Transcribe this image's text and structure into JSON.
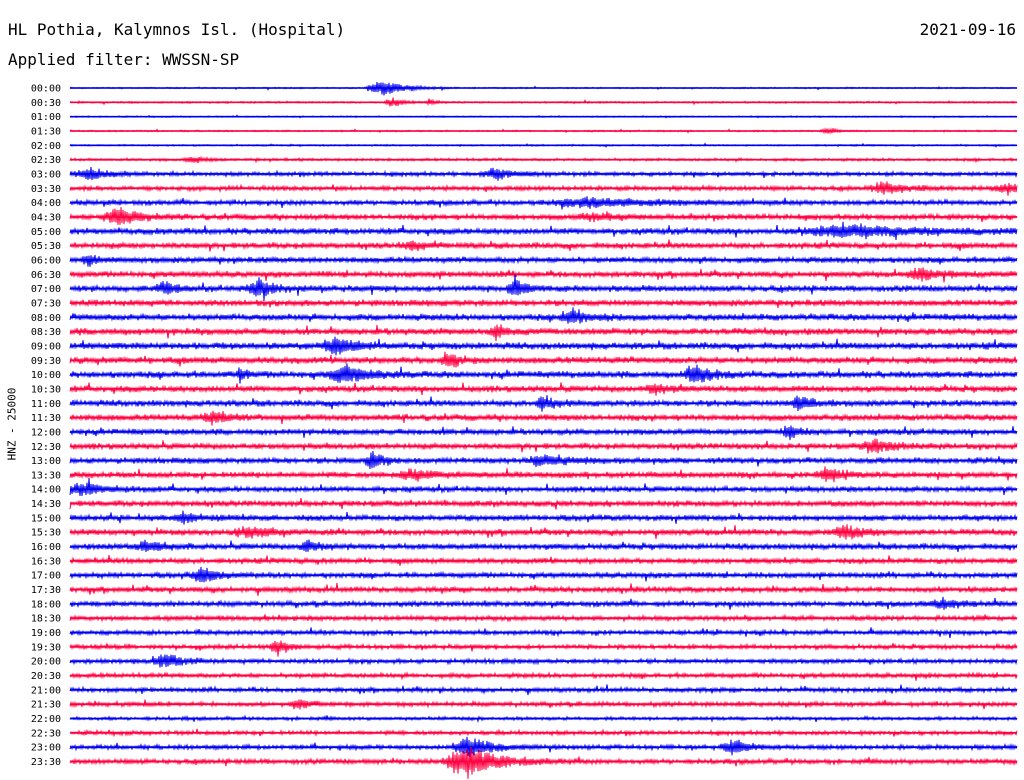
{
  "header": {
    "station": "HL Pothia, Kalymnos Isl. (Hospital)",
    "date": "2021-09-16",
    "filter": "Applied filter: WWSSN-SP"
  },
  "chart_data": {
    "type": "line",
    "ylabel": "HNZ - 25000",
    "colors": [
      "#0000ee",
      "#ff0040"
    ],
    "rows": [
      {
        "label": "00:00",
        "noise": 0.6,
        "events": [
          {
            "t": 0.33,
            "amp": 10,
            "dur": 0.02
          }
        ]
      },
      {
        "label": "00:30",
        "noise": 0.8,
        "events": [
          {
            "t": 0.34,
            "amp": 5,
            "dur": 0.01
          },
          {
            "t": 0.38,
            "amp": 4,
            "dur": 0.005
          }
        ]
      },
      {
        "label": "01:00",
        "noise": 0.6,
        "events": []
      },
      {
        "label": "01:30",
        "noise": 0.7,
        "events": [
          {
            "t": 0.8,
            "amp": 3,
            "dur": 0.01
          }
        ]
      },
      {
        "label": "02:00",
        "noise": 0.7,
        "events": []
      },
      {
        "label": "02:30",
        "noise": 1.2,
        "events": [
          {
            "t": 0.13,
            "amp": 4,
            "dur": 0.01
          }
        ]
      },
      {
        "label": "03:00",
        "noise": 1.8,
        "events": [
          {
            "t": 0.02,
            "amp": 6,
            "dur": 0.02
          },
          {
            "t": 0.45,
            "amp": 6,
            "dur": 0.02
          }
        ]
      },
      {
        "label": "03:30",
        "noise": 2.0,
        "events": [
          {
            "t": 0.86,
            "amp": 7,
            "dur": 0.02
          },
          {
            "t": 0.99,
            "amp": 5,
            "dur": 0.02
          }
        ]
      },
      {
        "label": "04:00",
        "noise": 2.2,
        "events": [
          {
            "t": 0.55,
            "amp": 5,
            "dur": 0.06
          }
        ]
      },
      {
        "label": "04:30",
        "noise": 2.5,
        "events": [
          {
            "t": 0.05,
            "amp": 10,
            "dur": 0.02
          },
          {
            "t": 0.55,
            "amp": 4,
            "dur": 0.02
          }
        ]
      },
      {
        "label": "05:00",
        "noise": 2.8,
        "events": [
          {
            "t": 0.82,
            "amp": 7,
            "dur": 0.06
          }
        ]
      },
      {
        "label": "05:30",
        "noise": 2.6,
        "events": [
          {
            "t": 0.36,
            "amp": 5,
            "dur": 0.015
          }
        ]
      },
      {
        "label": "06:00",
        "noise": 2.6,
        "events": [
          {
            "t": 0.02,
            "amp": 6,
            "dur": 0.01
          }
        ]
      },
      {
        "label": "06:30",
        "noise": 2.6,
        "events": [
          {
            "t": 0.9,
            "amp": 7,
            "dur": 0.02
          }
        ]
      },
      {
        "label": "07:00",
        "noise": 2.8,
        "events": [
          {
            "t": 0.1,
            "amp": 8,
            "dur": 0.01
          },
          {
            "t": 0.2,
            "amp": 10,
            "dur": 0.015
          },
          {
            "t": 0.47,
            "amp": 11,
            "dur": 0.01
          }
        ]
      },
      {
        "label": "07:30",
        "noise": 2.8,
        "events": []
      },
      {
        "label": "08:00",
        "noise": 3.0,
        "events": [
          {
            "t": 0.53,
            "amp": 9,
            "dur": 0.015
          }
        ]
      },
      {
        "label": "08:30",
        "noise": 3.0,
        "events": [
          {
            "t": 0.45,
            "amp": 7,
            "dur": 0.01
          }
        ]
      },
      {
        "label": "09:00",
        "noise": 3.0,
        "events": [
          {
            "t": 0.28,
            "amp": 10,
            "dur": 0.02
          }
        ]
      },
      {
        "label": "09:30",
        "noise": 3.0,
        "events": [
          {
            "t": 0.4,
            "amp": 9,
            "dur": 0.01
          }
        ]
      },
      {
        "label": "10:00",
        "noise": 3.0,
        "events": [
          {
            "t": 0.18,
            "amp": 9,
            "dur": 0.005
          },
          {
            "t": 0.29,
            "amp": 10,
            "dur": 0.02
          },
          {
            "t": 0.66,
            "amp": 11,
            "dur": 0.015
          }
        ]
      },
      {
        "label": "10:30",
        "noise": 2.8,
        "events": [
          {
            "t": 0.62,
            "amp": 5,
            "dur": 0.015
          }
        ]
      },
      {
        "label": "11:00",
        "noise": 2.8,
        "events": [
          {
            "t": 0.5,
            "amp": 8,
            "dur": 0.01
          },
          {
            "t": 0.77,
            "amp": 10,
            "dur": 0.01
          }
        ]
      },
      {
        "label": "11:30",
        "noise": 2.8,
        "events": [
          {
            "t": 0.15,
            "amp": 7,
            "dur": 0.015
          }
        ]
      },
      {
        "label": "12:00",
        "noise": 2.6,
        "events": [
          {
            "t": 0.76,
            "amp": 9,
            "dur": 0.01
          }
        ]
      },
      {
        "label": "12:30",
        "noise": 2.6,
        "events": [
          {
            "t": 0.85,
            "amp": 7,
            "dur": 0.02
          }
        ]
      },
      {
        "label": "13:00",
        "noise": 2.6,
        "events": [
          {
            "t": 0.32,
            "amp": 11,
            "dur": 0.01
          },
          {
            "t": 0.5,
            "amp": 7,
            "dur": 0.02
          }
        ]
      },
      {
        "label": "13:30",
        "noise": 2.6,
        "events": [
          {
            "t": 0.36,
            "amp": 6,
            "dur": 0.02
          },
          {
            "t": 0.8,
            "amp": 8,
            "dur": 0.015
          }
        ]
      },
      {
        "label": "14:00",
        "noise": 2.5,
        "events": [
          {
            "t": 0.01,
            "amp": 7,
            "dur": 0.02
          }
        ]
      },
      {
        "label": "14:30",
        "noise": 2.6,
        "events": []
      },
      {
        "label": "15:00",
        "noise": 2.6,
        "events": [
          {
            "t": 0.12,
            "amp": 5,
            "dur": 0.015
          }
        ]
      },
      {
        "label": "15:30",
        "noise": 2.6,
        "events": [
          {
            "t": 0.19,
            "amp": 6,
            "dur": 0.02
          },
          {
            "t": 0.82,
            "amp": 7,
            "dur": 0.02
          }
        ]
      },
      {
        "label": "16:00",
        "noise": 2.6,
        "events": [
          {
            "t": 0.08,
            "amp": 7,
            "dur": 0.015
          },
          {
            "t": 0.25,
            "amp": 7,
            "dur": 0.01
          }
        ]
      },
      {
        "label": "16:30",
        "noise": 2.4,
        "events": []
      },
      {
        "label": "17:00",
        "noise": 2.4,
        "events": [
          {
            "t": 0.14,
            "amp": 8,
            "dur": 0.015
          }
        ]
      },
      {
        "label": "17:30",
        "noise": 2.4,
        "events": []
      },
      {
        "label": "18:00",
        "noise": 2.4,
        "events": [
          {
            "t": 0.92,
            "amp": 5,
            "dur": 0.02
          }
        ]
      },
      {
        "label": "18:30",
        "noise": 2.2,
        "events": []
      },
      {
        "label": "19:00",
        "noise": 2.0,
        "events": []
      },
      {
        "label": "19:30",
        "noise": 2.0,
        "events": [
          {
            "t": 0.22,
            "amp": 8,
            "dur": 0.01
          }
        ]
      },
      {
        "label": "20:00",
        "noise": 2.0,
        "events": [
          {
            "t": 0.1,
            "amp": 9,
            "dur": 0.015
          }
        ]
      },
      {
        "label": "20:30",
        "noise": 2.0,
        "events": []
      },
      {
        "label": "21:00",
        "noise": 2.0,
        "events": []
      },
      {
        "label": "21:30",
        "noise": 2.0,
        "events": [
          {
            "t": 0.24,
            "amp": 6,
            "dur": 0.01
          }
        ]
      },
      {
        "label": "22:00",
        "noise": 1.5,
        "events": []
      },
      {
        "label": "22:30",
        "noise": 1.8,
        "events": []
      },
      {
        "label": "23:00",
        "noise": 2.0,
        "events": [
          {
            "t": 0.42,
            "amp": 13,
            "dur": 0.02
          },
          {
            "t": 0.7,
            "amp": 8,
            "dur": 0.015
          }
        ]
      },
      {
        "label": "23:30",
        "noise": 2.2,
        "events": [
          {
            "t": 0.42,
            "amp": 18,
            "dur": 0.03
          }
        ]
      }
    ]
  }
}
